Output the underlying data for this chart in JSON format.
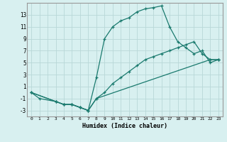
{
  "xlabel": "Humidex (Indice chaleur)",
  "ylabel": "",
  "bg_color": "#d8f0f0",
  "line_color": "#1a7a6e",
  "grid_color": "#b8d8d8",
  "xlim": [
    -0.5,
    23.5
  ],
  "ylim": [
    -4,
    15
  ],
  "xticks": [
    0,
    1,
    2,
    3,
    4,
    5,
    6,
    7,
    8,
    9,
    10,
    11,
    12,
    13,
    14,
    15,
    16,
    17,
    18,
    19,
    20,
    21,
    22,
    23
  ],
  "yticks": [
    -3,
    -1,
    1,
    3,
    5,
    7,
    9,
    11,
    13
  ],
  "series": [
    {
      "x": [
        0,
        1,
        3,
        4,
        5,
        6,
        7,
        8,
        9,
        10,
        11,
        12,
        13,
        14,
        15,
        16,
        17,
        18,
        19,
        20,
        21,
        22,
        23
      ],
      "y": [
        0,
        -1,
        -1.5,
        -2,
        -2,
        -2.5,
        -3,
        2.5,
        9,
        11,
        12,
        12.5,
        13.5,
        14,
        14.2,
        14.5,
        11,
        8.5,
        7.5,
        6.5,
        7,
        5,
        5.5
      ]
    },
    {
      "x": [
        0,
        3,
        4,
        5,
        6,
        7,
        8,
        9,
        10,
        11,
        12,
        13,
        14,
        15,
        16,
        17,
        18,
        19,
        20,
        21,
        22,
        23
      ],
      "y": [
        0,
        -1.5,
        -2,
        -2,
        -2.5,
        -3,
        -1,
        0,
        1.5,
        2.5,
        3.5,
        4.5,
        5.5,
        6,
        6.5,
        7,
        7.5,
        8.0,
        8.5,
        6.5,
        5.5,
        5.5
      ]
    },
    {
      "x": [
        0,
        3,
        4,
        5,
        6,
        7,
        8,
        22,
        23
      ],
      "y": [
        0,
        -1.5,
        -2,
        -2,
        -2.5,
        -3,
        -1,
        5.5,
        5.5
      ]
    }
  ]
}
